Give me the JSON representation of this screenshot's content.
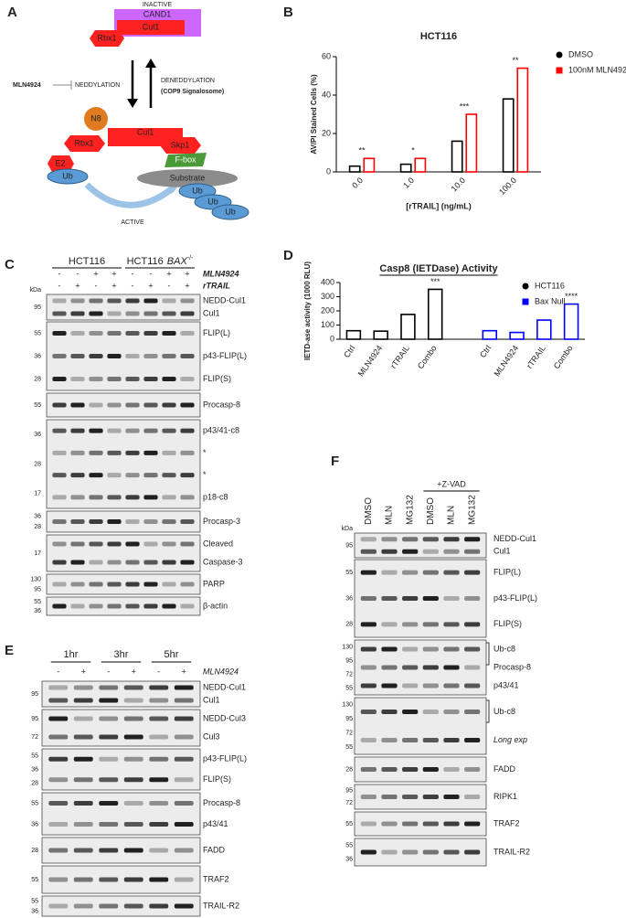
{
  "panel_a": {
    "letter": "A",
    "inactive": "INACTIVE",
    "cand1": "CAND1",
    "cul1_top": "Cul1",
    "rbx1_top": "Rbx1",
    "inhibitor": "MLN4924",
    "neddylation": "NEDDYLATION",
    "deneddylation": "DENEDDYLATION",
    "csn": "(COP9 Signalosome)",
    "n8": "N8",
    "cul1": "Cul1",
    "rbx1": "Rbx1",
    "skp1": "Skp1",
    "fbox": "F-box",
    "e2": "E2",
    "ub": "Ub",
    "substrate": "Substrate",
    "ub_chain": [
      "Ub",
      "Ub",
      "Ub"
    ],
    "active": "ACTIVE"
  },
  "chart_data": [
    {
      "type": "bar",
      "letter": "B",
      "title": "HCT116",
      "xlabel": "[rTRAIL] (ng/mL)",
      "ylabel": "AV/PI Stained Cells (%)",
      "categories": [
        "0.0",
        "1.0",
        "10.0",
        "100.0"
      ],
      "series": [
        {
          "name": "DMSO",
          "color": "#000000",
          "marker": "circle",
          "values": [
            3,
            4,
            16,
            38
          ]
        },
        {
          "name": "100nM MLN4924",
          "color": "#ff0000",
          "marker": "square",
          "values": [
            7,
            7,
            30,
            54
          ],
          "annotations": [
            "**",
            "*",
            "***",
            "**"
          ]
        }
      ],
      "ylim": [
        0,
        60
      ],
      "yticks": [
        0,
        20,
        40,
        60
      ]
    },
    {
      "type": "bar",
      "letter": "D",
      "title": "Casp8 (IETDase) Activity",
      "ylabel": "IETD-ase activity (1000 RLU)",
      "categories": [
        "Ctrl",
        "MLN4924",
        "rTRAIL",
        "Combo"
      ],
      "series": [
        {
          "name": "HCT116",
          "color": "#000000",
          "marker": "circle",
          "values": [
            60,
            57,
            175,
            352
          ],
          "annotations": [
            null,
            null,
            null,
            "***"
          ]
        },
        {
          "name": "Bax Null",
          "color": "#0000ff",
          "marker": "square",
          "values": [
            60,
            48,
            135,
            248
          ],
          "annotations": [
            null,
            null,
            null,
            "****"
          ]
        }
      ],
      "ylim": [
        0,
        400
      ],
      "yticks": [
        0,
        100,
        200,
        300,
        400
      ]
    }
  ],
  "panel_c": {
    "letter": "C",
    "kda": "kDa",
    "groups": [
      [
        "HCT116"
      ],
      [
        "HCT116",
        "BAX",
        "-/-"
      ]
    ],
    "treatments": [
      {
        "name": "MLN4924",
        "signs": [
          "-",
          "-",
          "+",
          "+",
          "-",
          "-",
          "+",
          "+"
        ]
      },
      {
        "name": "rTRAIL",
        "signs": [
          "-",
          "+",
          "-",
          "+",
          "-",
          "+",
          "-",
          "+"
        ]
      }
    ],
    "strips": [
      {
        "kda": [
          "95"
        ],
        "labels": [
          "NEDD-Cul1",
          "Cul1"
        ]
      },
      {
        "kda": [
          "55",
          "36",
          "28"
        ],
        "labels": [
          "FLIP(L)",
          "p43-FLIP(L)",
          "FLIP(S)"
        ]
      },
      {
        "kda": [
          "55"
        ],
        "labels": [
          "Procasp-8"
        ]
      },
      {
        "kda": [
          "36",
          "28",
          "17"
        ],
        "labels": [
          "p43/41-c8",
          "*",
          "*",
          "p18-c8"
        ]
      },
      {
        "kda": [
          "36",
          "28"
        ],
        "labels": [
          "Procasp-3"
        ]
      },
      {
        "kda": [
          "17"
        ],
        "labels": [
          "Cleaved",
          "Caspase-3"
        ]
      },
      {
        "kda": [
          "130",
          "95"
        ],
        "labels": [
          "PARP"
        ]
      },
      {
        "kda": [
          "55",
          "36"
        ],
        "labels": [
          "β-actin"
        ]
      }
    ]
  },
  "panel_e": {
    "letter": "E",
    "groups": [
      "1hr",
      "3hr",
      "5hr"
    ],
    "treatments": [
      {
        "name": "MLN4924",
        "signs": [
          "-",
          "+",
          "-",
          "+",
          "-",
          "+"
        ]
      }
    ],
    "strips": [
      {
        "kda": [
          "95"
        ],
        "labels": [
          "NEDD-Cul1",
          "Cul1"
        ]
      },
      {
        "kda": [
          "95",
          "72"
        ],
        "labels": [
          "NEDD-Cul3",
          "Cul3"
        ]
      },
      {
        "kda": [
          "55",
          "36",
          "28"
        ],
        "labels": [
          "p43-FLIP(L)",
          "FLIP(S)"
        ]
      },
      {
        "kda": [
          "55",
          "36"
        ],
        "labels": [
          "Procasp-8",
          "p43/41"
        ]
      },
      {
        "kda": [
          "28"
        ],
        "labels": [
          "FADD"
        ]
      },
      {
        "kda": [
          "55"
        ],
        "labels": [
          "TRAF2"
        ]
      },
      {
        "kda": [
          "55",
          "36"
        ],
        "labels": [
          "TRAIL-R2"
        ]
      }
    ]
  },
  "panel_f": {
    "letter": "F",
    "kda": "kDa",
    "lanes": [
      "DMSO",
      "MLN",
      "MG132",
      "DMSO",
      "MLN",
      "MG132"
    ],
    "group": "+Z-VAD",
    "strips": [
      {
        "kda": [
          "95"
        ],
        "labels": [
          "NEDD-Cul1",
          "Cul1"
        ]
      },
      {
        "kda": [
          "55",
          "36",
          "28"
        ],
        "labels": [
          "FLIP(L)",
          "p43-FLIP(L)",
          "FLIP(S)"
        ]
      },
      {
        "kda": [
          "130",
          "95",
          "72",
          "55"
        ],
        "labels": [
          "Ub-c8",
          "Procasp-8",
          "p43/41"
        ]
      },
      {
        "kda": [
          "130",
          "95",
          "72",
          "55"
        ],
        "labels": [
          "Ub-c8",
          "Long exp"
        ]
      },
      {
        "kda": [
          "28"
        ],
        "labels": [
          "FADD"
        ]
      },
      {
        "kda": [
          "95",
          "72"
        ],
        "labels": [
          "RIPK1"
        ]
      },
      {
        "kda": [
          "55"
        ],
        "labels": [
          "TRAF2"
        ]
      },
      {
        "kda": [
          "55",
          "36"
        ],
        "labels": [
          "TRAIL-R2"
        ]
      }
    ]
  }
}
